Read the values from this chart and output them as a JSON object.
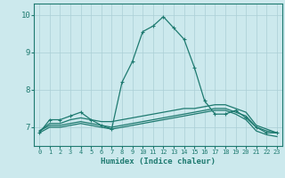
{
  "xlabel": "Humidex (Indice chaleur)",
  "xlim": [
    -0.5,
    23.5
  ],
  "ylim": [
    6.5,
    10.3
  ],
  "yticks": [
    7,
    8,
    9,
    10
  ],
  "xticks": [
    0,
    1,
    2,
    3,
    4,
    5,
    6,
    7,
    8,
    9,
    10,
    11,
    12,
    13,
    14,
    15,
    16,
    17,
    18,
    19,
    20,
    21,
    22,
    23
  ],
  "background_color": "#cce9ed",
  "grid_color": "#aacfd5",
  "line_color": "#1e7a70",
  "lines": [
    {
      "x": [
        0,
        1,
        2,
        3,
        4,
        5,
        6,
        7,
        8,
        9,
        10,
        11,
        12,
        13,
        14,
        15,
        16,
        17,
        18,
        19,
        20,
        21,
        22,
        23
      ],
      "y": [
        6.85,
        7.2,
        7.2,
        7.3,
        7.4,
        7.2,
        7.05,
        6.95,
        8.2,
        8.75,
        9.55,
        9.7,
        9.95,
        9.65,
        9.35,
        8.6,
        7.7,
        7.35,
        7.35,
        7.45,
        7.25,
        7.0,
        6.85,
        6.85
      ],
      "has_markers": true
    },
    {
      "x": [
        0,
        1,
        2,
        3,
        4,
        5,
        6,
        7,
        8,
        9,
        10,
        11,
        12,
        13,
        14,
        15,
        16,
        17,
        18,
        19,
        20,
        21,
        22,
        23
      ],
      "y": [
        6.9,
        7.1,
        7.1,
        7.2,
        7.25,
        7.2,
        7.15,
        7.15,
        7.2,
        7.25,
        7.3,
        7.35,
        7.4,
        7.45,
        7.5,
        7.5,
        7.55,
        7.6,
        7.6,
        7.5,
        7.4,
        7.05,
        6.95,
        6.85
      ],
      "has_markers": false
    },
    {
      "x": [
        0,
        1,
        2,
        3,
        4,
        5,
        6,
        7,
        8,
        9,
        10,
        11,
        12,
        13,
        14,
        15,
        16,
        17,
        18,
        19,
        20,
        21,
        22,
        23
      ],
      "y": [
        6.9,
        7.05,
        7.05,
        7.1,
        7.15,
        7.1,
        7.05,
        7.0,
        7.05,
        7.1,
        7.15,
        7.2,
        7.25,
        7.3,
        7.35,
        7.4,
        7.45,
        7.5,
        7.5,
        7.4,
        7.3,
        7.0,
        6.9,
        6.85
      ],
      "has_markers": false
    },
    {
      "x": [
        0,
        1,
        2,
        3,
        4,
        5,
        6,
        7,
        8,
        9,
        10,
        11,
        12,
        13,
        14,
        15,
        16,
        17,
        18,
        19,
        20,
        21,
        22,
        23
      ],
      "y": [
        6.85,
        7.0,
        7.0,
        7.05,
        7.1,
        7.05,
        7.0,
        6.95,
        7.0,
        7.05,
        7.1,
        7.15,
        7.2,
        7.25,
        7.3,
        7.35,
        7.4,
        7.45,
        7.45,
        7.35,
        7.2,
        6.9,
        6.8,
        6.75
      ],
      "has_markers": false
    }
  ],
  "marker": "+",
  "marker_size": 3.5,
  "marker_lw": 0.8,
  "line_width": 0.9
}
